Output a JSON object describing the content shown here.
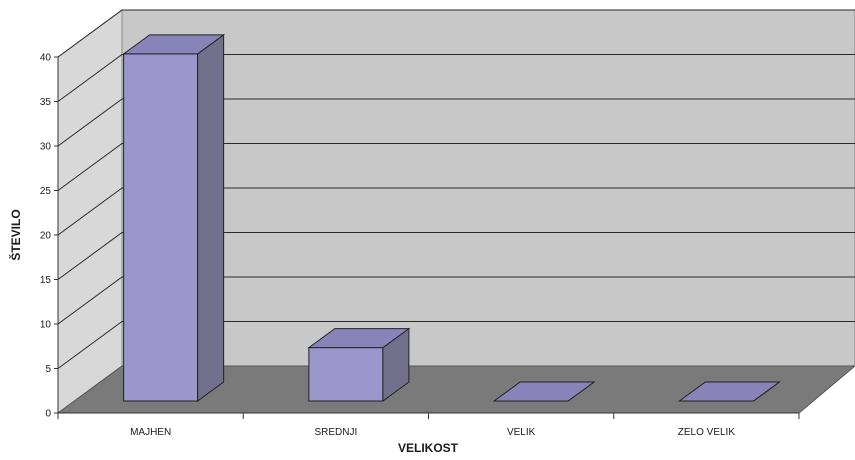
{
  "chart_data": {
    "type": "bar",
    "title": "",
    "xlabel": "VELIKOST",
    "ylabel": "ŠTEVILO",
    "categories": [
      "MAJHEN",
      "SREDNJI",
      "VELIK",
      "ZELO VELIK"
    ],
    "values": [
      39,
      6,
      0,
      0
    ],
    "ylim": [
      0,
      40
    ],
    "yticks": [
      0,
      5,
      10,
      15,
      20,
      25,
      30,
      35,
      40
    ],
    "grid": true,
    "three_d": true,
    "colors": {
      "bar_front": "#9b96cc",
      "bar_side": "#72708a",
      "bar_top": "#8883b8",
      "back_wall": "#c8c8c8",
      "side_wall": "#d8d8d8",
      "floor": "#7a7a7a",
      "grid": "#2a2a2a"
    }
  }
}
